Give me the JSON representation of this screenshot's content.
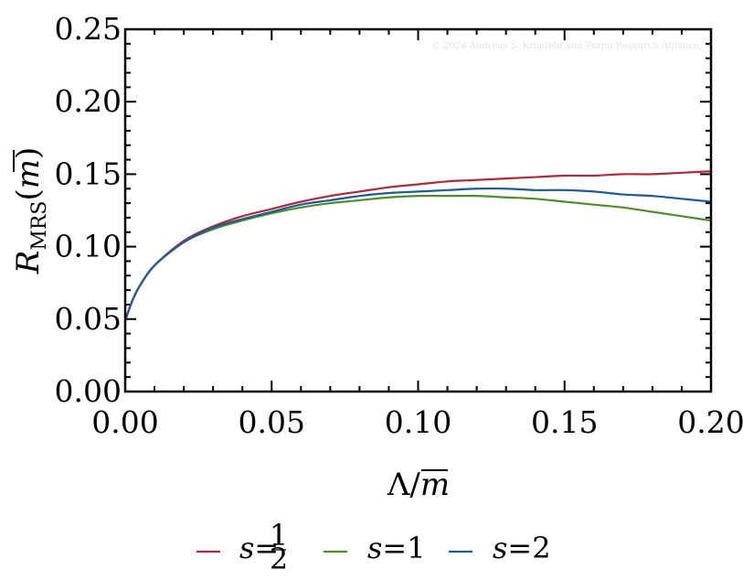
{
  "chart_data": {
    "type": "line",
    "xlim": [
      0,
      0.2
    ],
    "ylim": [
      0,
      0.25
    ],
    "x_ticks": [
      "0.00",
      "0.05",
      "0.10",
      "0.15",
      "0.20"
    ],
    "y_ticks": [
      "0.00",
      "0.05",
      "0.10",
      "0.15",
      "0.20",
      "0.25"
    ],
    "xlabel": "Λ/m̄",
    "ylabel": "R_MRS(m̄)",
    "watermark": "© 2024 Andreas S. Kronfeld and Fermi Research Alliance,",
    "legend_placement": "bottom",
    "series": [
      {
        "name": "s=1/2",
        "legend_label": "s=",
        "color": "#b3283a",
        "x": [
          0.0,
          0.0025,
          0.005,
          0.01,
          0.02,
          0.03,
          0.04,
          0.05,
          0.06,
          0.07,
          0.08,
          0.09,
          0.1,
          0.11,
          0.12,
          0.13,
          0.14,
          0.15,
          0.16,
          0.17,
          0.18,
          0.19,
          0.2
        ],
        "y": [
          0.049,
          0.063,
          0.073,
          0.087,
          0.104,
          0.114,
          0.121,
          0.126,
          0.131,
          0.135,
          0.138,
          0.141,
          0.143,
          0.145,
          0.146,
          0.147,
          0.148,
          0.149,
          0.149,
          0.15,
          0.15,
          0.151,
          0.152
        ]
      },
      {
        "name": "s=1",
        "legend_label": "s=1",
        "color": "#4c8f2a",
        "x": [
          0.0,
          0.0025,
          0.005,
          0.01,
          0.02,
          0.03,
          0.04,
          0.05,
          0.06,
          0.07,
          0.08,
          0.09,
          0.1,
          0.11,
          0.12,
          0.13,
          0.14,
          0.15,
          0.16,
          0.17,
          0.18,
          0.19,
          0.2
        ],
        "y": [
          0.049,
          0.063,
          0.073,
          0.087,
          0.103,
          0.112,
          0.118,
          0.123,
          0.127,
          0.13,
          0.132,
          0.134,
          0.135,
          0.135,
          0.135,
          0.134,
          0.133,
          0.131,
          0.129,
          0.127,
          0.124,
          0.121,
          0.118
        ]
      },
      {
        "name": "s=2",
        "legend_label": "s=2",
        "color": "#1f5a99",
        "x": [
          0.0,
          0.0025,
          0.005,
          0.01,
          0.02,
          0.03,
          0.04,
          0.05,
          0.06,
          0.07,
          0.08,
          0.09,
          0.1,
          0.11,
          0.12,
          0.13,
          0.14,
          0.15,
          0.16,
          0.17,
          0.18,
          0.19,
          0.2
        ],
        "y": [
          0.049,
          0.063,
          0.073,
          0.087,
          0.103,
          0.113,
          0.119,
          0.124,
          0.129,
          0.132,
          0.135,
          0.137,
          0.138,
          0.139,
          0.14,
          0.14,
          0.139,
          0.139,
          0.138,
          0.136,
          0.135,
          0.133,
          0.131
        ]
      }
    ]
  }
}
